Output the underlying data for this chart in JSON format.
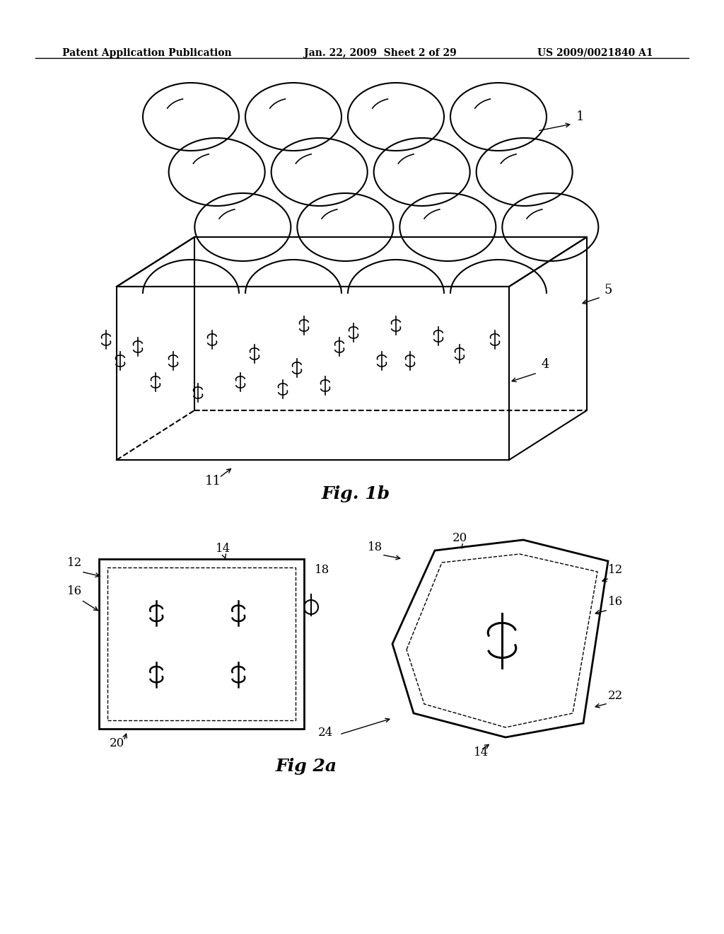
{
  "background_color": "#ffffff",
  "text_color": "#000000",
  "line_color": "#000000",
  "header_left": "Patent Application Publication",
  "header_center": "Jan. 22, 2009  Sheet 2 of 29",
  "header_right": "US 2009/0021840 A1",
  "fig1b_label": "Fig. 1b",
  "fig2a_label": "Fig 2a",
  "label_1": "1",
  "label_4": "4",
  "label_5": "5",
  "label_11": "11",
  "label_12": "12",
  "label_14": "14",
  "label_16": "16",
  "label_18": "18",
  "label_20": "20",
  "label_22": "22",
  "label_24": "24"
}
